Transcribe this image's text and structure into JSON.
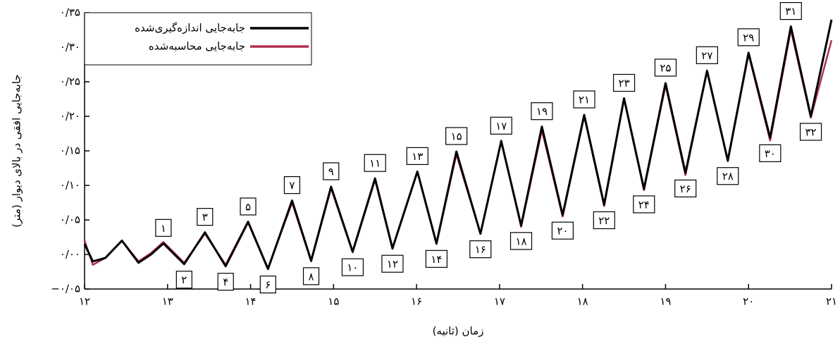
{
  "chart_data": {
    "type": "line",
    "x_label": "زمان (ثانیه)",
    "y_label": "جابه‌جایی افقی در بالای دیوار (متر)",
    "x": [
      12,
      12.1,
      12.25,
      12.45,
      12.65,
      12.8,
      12.95,
      13.2,
      13.45,
      13.7,
      13.97,
      14.21,
      14.5,
      14.73,
      14.97,
      15.23,
      15.5,
      15.71,
      16.01,
      16.24,
      16.48,
      16.77,
      17.02,
      17.26,
      17.51,
      17.76,
      18.02,
      18.26,
      18.5,
      18.74,
      19.0,
      19.24,
      19.5,
      19.75,
      20.0,
      20.26,
      20.51,
      20.75,
      21
    ],
    "series": [
      {
        "name": "جابه‌جایی اندازه‌گیری‌شده",
        "color": "#000000",
        "values": [
          0.015,
          -0.01,
          -0.005,
          0.02,
          -0.012,
          0.0,
          0.016,
          -0.014,
          0.032,
          -0.017,
          0.047,
          -0.021,
          0.078,
          -0.009,
          0.098,
          0.004,
          0.11,
          0.009,
          0.12,
          0.016,
          0.149,
          0.03,
          0.164,
          0.042,
          0.185,
          0.057,
          0.202,
          0.072,
          0.226,
          0.095,
          0.248,
          0.118,
          0.266,
          0.136,
          0.292,
          0.169,
          0.33,
          0.2,
          0.34
        ]
      },
      {
        "name": "جابه‌جایی محاسبه‌شده",
        "color": "#b0304a",
        "values": [
          0.02,
          -0.015,
          -0.005,
          0.02,
          -0.01,
          0.002,
          0.018,
          -0.012,
          0.03,
          -0.015,
          0.048,
          -0.02,
          0.075,
          -0.01,
          0.096,
          0.003,
          0.108,
          0.008,
          0.12,
          0.015,
          0.145,
          0.03,
          0.165,
          0.04,
          0.18,
          0.055,
          0.2,
          0.07,
          0.225,
          0.093,
          0.245,
          0.115,
          0.265,
          0.135,
          0.29,
          0.165,
          0.325,
          0.198,
          0.31
        ]
      }
    ],
    "xlim": [
      12,
      21
    ],
    "ylim": [
      -0.05,
      0.35
    ],
    "xticks": [
      {
        "value": 12,
        "label": "۱۲"
      },
      {
        "value": 13,
        "label": "۱۳"
      },
      {
        "value": 14,
        "label": "۱۴"
      },
      {
        "value": 15,
        "label": "۱۵"
      },
      {
        "value": 16,
        "label": "۱۶"
      },
      {
        "value": 17,
        "label": "۱۷"
      },
      {
        "value": 18,
        "label": "۱۸"
      },
      {
        "value": 19,
        "label": "۱۹"
      },
      {
        "value": 20,
        "label": "۲۰"
      },
      {
        "value": 21,
        "label": "۲۱"
      }
    ],
    "yticks": [
      {
        "value": -0.05,
        "label": "−۰/۰۵"
      },
      {
        "value": 0,
        "label": "۰/۰۰"
      },
      {
        "value": 0.05,
        "label": "۰/۰۵"
      },
      {
        "value": 0.1,
        "label": "۰/۱۰"
      },
      {
        "value": 0.15,
        "label": "۰/۱۵"
      },
      {
        "value": 0.2,
        "label": "۰/۲۰"
      },
      {
        "value": 0.25,
        "label": "۰/۲۵"
      },
      {
        "value": 0.3,
        "label": "۰/۳۰"
      },
      {
        "value": 0.35,
        "label": "۰/۳۵"
      }
    ],
    "legend": "upper left",
    "annotations": [
      {
        "label": "۱",
        "x": 12.95,
        "y": 0.016
      },
      {
        "label": "۲",
        "x": 13.2,
        "y": -0.014
      },
      {
        "label": "۳",
        "x": 13.45,
        "y": 0.032
      },
      {
        "label": "۴",
        "x": 13.7,
        "y": -0.017
      },
      {
        "label": "۵",
        "x": 13.97,
        "y": 0.047
      },
      {
        "label": "۶",
        "x": 14.21,
        "y": -0.021
      },
      {
        "label": "۷",
        "x": 14.5,
        "y": 0.078
      },
      {
        "label": "۸",
        "x": 14.73,
        "y": -0.009
      },
      {
        "label": "۹",
        "x": 14.97,
        "y": 0.098
      },
      {
        "label": "۱۰",
        "x": 15.23,
        "y": 0.004
      },
      {
        "label": "۱۱",
        "x": 15.5,
        "y": 0.11
      },
      {
        "label": "۱۲",
        "x": 15.71,
        "y": 0.009
      },
      {
        "label": "۱۳",
        "x": 16.01,
        "y": 0.12
      },
      {
        "label": "۱۴",
        "x": 16.24,
        "y": 0.016
      },
      {
        "label": "۱۵",
        "x": 16.48,
        "y": 0.149
      },
      {
        "label": "۱۶",
        "x": 16.77,
        "y": 0.03
      },
      {
        "label": "۱۷",
        "x": 17.02,
        "y": 0.164
      },
      {
        "label": "۱۸",
        "x": 17.26,
        "y": 0.042
      },
      {
        "label": "۱۹",
        "x": 17.51,
        "y": 0.185
      },
      {
        "label": "۲۰",
        "x": 17.76,
        "y": 0.057
      },
      {
        "label": "۲۱",
        "x": 18.02,
        "y": 0.202
      },
      {
        "label": "۲۲",
        "x": 18.26,
        "y": 0.072
      },
      {
        "label": "۲۳",
        "x": 18.5,
        "y": 0.226
      },
      {
        "label": "۲۴",
        "x": 18.74,
        "y": 0.095
      },
      {
        "label": "۲۵",
        "x": 19.0,
        "y": 0.248
      },
      {
        "label": "۲۶",
        "x": 19.24,
        "y": 0.118
      },
      {
        "label": "۲۷",
        "x": 19.5,
        "y": 0.266
      },
      {
        "label": "۲۸",
        "x": 19.75,
        "y": 0.136
      },
      {
        "label": "۲۹",
        "x": 20.0,
        "y": 0.292
      },
      {
        "label": "۳۰",
        "x": 20.26,
        "y": 0.169
      },
      {
        "label": "۳۱",
        "x": 20.51,
        "y": 0.33
      },
      {
        "label": "۳۲",
        "x": 20.75,
        "y": 0.2
      }
    ]
  }
}
